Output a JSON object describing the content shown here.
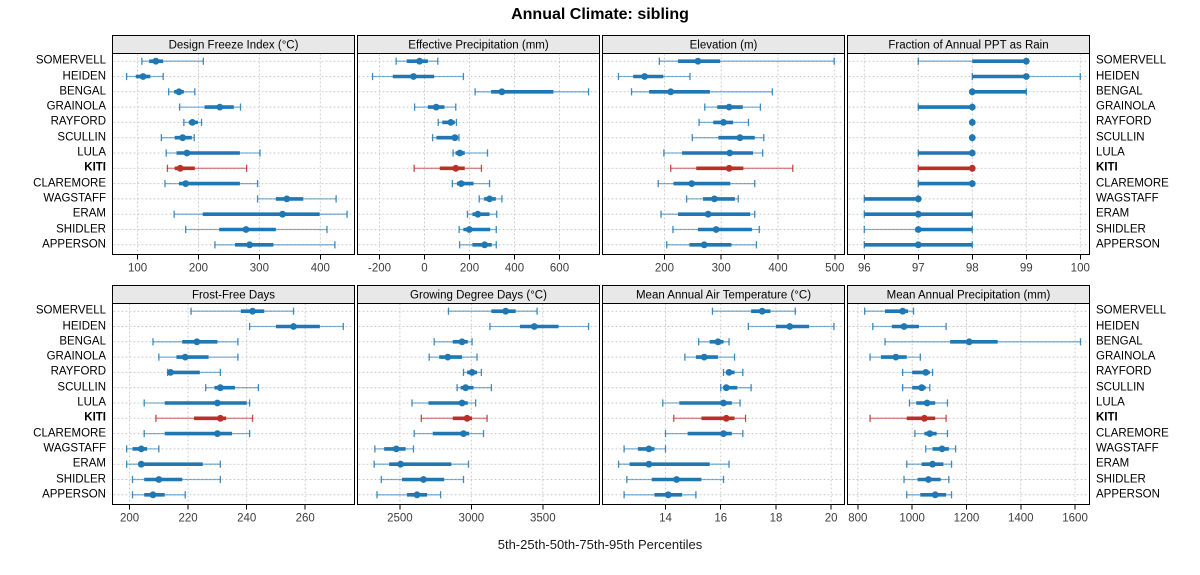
{
  "figure": {
    "title": "Annual Climate: sibling",
    "caption": "5th-25th-50th-75th-95th Percentiles"
  },
  "highlight_station": "KITI",
  "colors": {
    "series": "#1f77b4",
    "highlight": "#bb2f28",
    "panel_header_bg": "#e8e8e8",
    "panel_border": "#000000",
    "grid": "#c9c9c9",
    "tick_label": "#3d3d3d",
    "background": "#ffffff"
  },
  "chart_data": {
    "type": "errorbar-dotplot",
    "layout": "2 rows x 4 columns trellis, shared station y-axis",
    "percentiles": [
      5,
      25,
      50,
      75,
      95
    ],
    "stations": [
      "SOMERVELL",
      "HEIDEN",
      "BENGAL",
      "GRAINOLA",
      "RAYFORD",
      "SCULLIN",
      "LULA",
      "KITI",
      "CLAREMORE",
      "WAGSTAFF",
      "ERAM",
      "SHIDLER",
      "APPERSON"
    ],
    "caption": "5th-25th-50th-75th-95th Percentiles",
    "panels": [
      {
        "title": "Design Freeze Index (°C)",
        "row": 0,
        "col": 0,
        "xlim": [
          58,
          457
        ],
        "ticks": [
          100,
          200,
          300,
          400
        ],
        "values": [
          [
            107,
            119,
            130,
            142,
            208
          ],
          [
            82,
            97,
            109,
            121,
            142
          ],
          [
            151,
            160,
            168,
            176,
            194
          ],
          [
            169,
            210,
            235,
            258,
            269
          ],
          [
            176,
            184,
            190,
            199,
            205
          ],
          [
            139,
            161,
            174,
            189,
            193
          ],
          [
            147,
            164,
            181,
            268,
            301
          ],
          [
            149,
            161,
            170,
            194,
            279
          ],
          [
            145,
            168,
            179,
            268,
            297
          ],
          [
            297,
            327,
            345,
            372,
            426
          ],
          [
            160,
            207,
            338,
            399,
            444
          ],
          [
            179,
            234,
            278,
            327,
            411
          ],
          [
            227,
            260,
            284,
            323,
            424
          ]
        ]
      },
      {
        "title": "Effective Precipitation (mm)",
        "row": 0,
        "col": 1,
        "xlim": [
          -300,
          780
        ],
        "ticks": [
          -200,
          0,
          200,
          400,
          600
        ],
        "values": [
          [
            -126,
            -79,
            -22,
            15,
            59
          ],
          [
            -231,
            -141,
            -49,
            43,
            173
          ],
          [
            225,
            296,
            344,
            573,
            729
          ],
          [
            -44,
            15,
            52,
            89,
            139
          ],
          [
            61,
            79,
            117,
            135,
            142
          ],
          [
            36,
            53,
            135,
            147,
            153
          ],
          [
            127,
            138,
            157,
            179,
            280
          ],
          [
            -46,
            68,
            139,
            179,
            253
          ],
          [
            124,
            144,
            163,
            218,
            289
          ],
          [
            243,
            265,
            289,
            317,
            344
          ],
          [
            191,
            213,
            237,
            289,
            321
          ],
          [
            154,
            173,
            199,
            292,
            319
          ],
          [
            156,
            213,
            267,
            299,
            319
          ]
        ]
      },
      {
        "title": "Elevation (m)",
        "row": 0,
        "col": 2,
        "xlim": [
          90,
          518
        ],
        "ticks": [
          200,
          300,
          400,
          500
        ],
        "values": [
          [
            191,
            224,
            259,
            298,
            499
          ],
          [
            119,
            145,
            165,
            198,
            245
          ],
          [
            142,
            173,
            211,
            280,
            390
          ],
          [
            271,
            293,
            314,
            338,
            369
          ],
          [
            261,
            286,
            304,
            321,
            348
          ],
          [
            249,
            295,
            333,
            359,
            375
          ],
          [
            199,
            231,
            315,
            356,
            373
          ],
          [
            211,
            256,
            314,
            339,
            426
          ],
          [
            189,
            216,
            248,
            316,
            359
          ],
          [
            239,
            268,
            288,
            324,
            330
          ],
          [
            194,
            224,
            277,
            351,
            359
          ],
          [
            215,
            259,
            291,
            354,
            367
          ],
          [
            204,
            244,
            270,
            318,
            362
          ]
        ]
      },
      {
        "title": "Fraction of Annual PPT as Rain",
        "row": 0,
        "col": 3,
        "xlim": [
          95.68,
          100.18
        ],
        "ticks": [
          96,
          97,
          98,
          99,
          100
        ],
        "values": [
          [
            97,
            98,
            99,
            99,
            99
          ],
          [
            98,
            98,
            99,
            99,
            100
          ],
          [
            98,
            98,
            98,
            99,
            99
          ],
          [
            97,
            97,
            98,
            98,
            98
          ],
          [
            98,
            98,
            98,
            98,
            98
          ],
          [
            98,
            98,
            98,
            98,
            98
          ],
          [
            97,
            97,
            98,
            98,
            98
          ],
          [
            97,
            97,
            98,
            98,
            98
          ],
          [
            97,
            97,
            98,
            98,
            98
          ],
          [
            96,
            96,
            97,
            97,
            97
          ],
          [
            96,
            96,
            97,
            98,
            98
          ],
          [
            96,
            97,
            97,
            98,
            98
          ],
          [
            96,
            96,
            97,
            98,
            98
          ]
        ]
      },
      {
        "title": "Frost-Free Days",
        "row": 1,
        "col": 0,
        "xlim": [
          194,
          277
        ],
        "ticks": [
          200,
          220,
          240,
          260
        ],
        "values": [
          [
            221,
            238,
            242,
            246,
            256
          ],
          [
            241,
            250,
            256,
            265,
            273
          ],
          [
            208,
            218,
            223,
            230,
            237
          ],
          [
            210,
            216,
            219,
            227,
            237
          ],
          [
            213,
            214,
            214,
            224,
            231
          ],
          [
            226,
            229,
            231,
            236,
            244
          ],
          [
            205,
            212,
            230,
            240,
            241
          ],
          [
            209,
            222,
            231,
            233,
            242
          ],
          [
            205,
            212,
            230,
            235,
            241
          ],
          [
            199,
            201,
            204,
            206,
            210
          ],
          [
            199,
            203,
            204,
            225,
            231
          ],
          [
            201,
            205,
            210,
            218,
            231
          ],
          [
            201,
            205,
            208,
            212,
            219
          ]
        ]
      },
      {
        "title": "Growing Degree Days (°C)",
        "row": 1,
        "col": 1,
        "xlim": [
          2200,
          3900
        ],
        "ticks": [
          2500,
          3000,
          3500
        ],
        "values": [
          [
            2840,
            3140,
            3240,
            3310,
            3460
          ],
          [
            3130,
            3340,
            3440,
            3610,
            3820
          ],
          [
            2740,
            2870,
            2935,
            2975,
            3005
          ],
          [
            2705,
            2775,
            2835,
            2935,
            3040
          ],
          [
            2945,
            2970,
            3005,
            3040,
            3070
          ],
          [
            2900,
            2925,
            2960,
            3015,
            3140
          ],
          [
            2585,
            2700,
            2935,
            2975,
            3030
          ],
          [
            2650,
            2870,
            2970,
            3005,
            3110
          ],
          [
            2600,
            2730,
            2945,
            2985,
            3085
          ],
          [
            2325,
            2390,
            2475,
            2540,
            2595
          ],
          [
            2320,
            2425,
            2505,
            2860,
            2980
          ],
          [
            2370,
            2515,
            2665,
            2810,
            2945
          ],
          [
            2340,
            2550,
            2620,
            2690,
            2785
          ]
        ]
      },
      {
        "title": "Mean Annual Air Temperature (°C)",
        "row": 1,
        "col": 2,
        "xlim": [
          11.7,
          20.5
        ],
        "ticks": [
          14,
          16,
          18,
          20
        ],
        "values": [
          [
            15.7,
            17.1,
            17.5,
            17.8,
            18.7
          ],
          [
            17.0,
            18.0,
            18.5,
            19.2,
            20.1
          ],
          [
            15.2,
            15.6,
            15.9,
            16.1,
            16.3
          ],
          [
            14.7,
            15.1,
            15.4,
            15.9,
            16.5
          ],
          [
            16.1,
            16.2,
            16.3,
            16.5,
            16.8
          ],
          [
            16.0,
            16.1,
            16.2,
            16.6,
            17.1
          ],
          [
            13.9,
            14.5,
            16.1,
            16.4,
            16.7
          ],
          [
            14.3,
            15.3,
            16.2,
            16.5,
            16.9
          ],
          [
            14.0,
            14.8,
            16.1,
            16.4,
            16.8
          ],
          [
            12.5,
            13.0,
            13.4,
            13.6,
            14.0
          ],
          [
            12.3,
            12.7,
            13.4,
            15.6,
            16.3
          ],
          [
            12.6,
            13.5,
            14.4,
            15.3,
            16.1
          ],
          [
            12.5,
            13.6,
            14.1,
            14.6,
            15.1
          ]
        ]
      },
      {
        "title": "Mean Annual Precipitation (mm)",
        "row": 1,
        "col": 3,
        "xlim": [
          760,
          1655
        ],
        "ticks": [
          800,
          1000,
          1200,
          1400,
          1600
        ],
        "values": [
          [
            825,
            900,
            965,
            985,
            1005
          ],
          [
            855,
            925,
            970,
            1025,
            1125
          ],
          [
            900,
            1140,
            1210,
            1315,
            1620
          ],
          [
            845,
            885,
            940,
            980,
            1030
          ],
          [
            965,
            1000,
            1050,
            1065,
            1075
          ],
          [
            965,
            1000,
            1035,
            1050,
            1065
          ],
          [
            990,
            1015,
            1055,
            1085,
            1130
          ],
          [
            845,
            980,
            1045,
            1085,
            1125
          ],
          [
            1010,
            1045,
            1065,
            1090,
            1130
          ],
          [
            1050,
            1075,
            1110,
            1135,
            1160
          ],
          [
            980,
            1035,
            1075,
            1115,
            1145
          ],
          [
            970,
            1020,
            1060,
            1105,
            1135
          ],
          [
            980,
            1030,
            1085,
            1125,
            1145
          ]
        ]
      }
    ]
  }
}
